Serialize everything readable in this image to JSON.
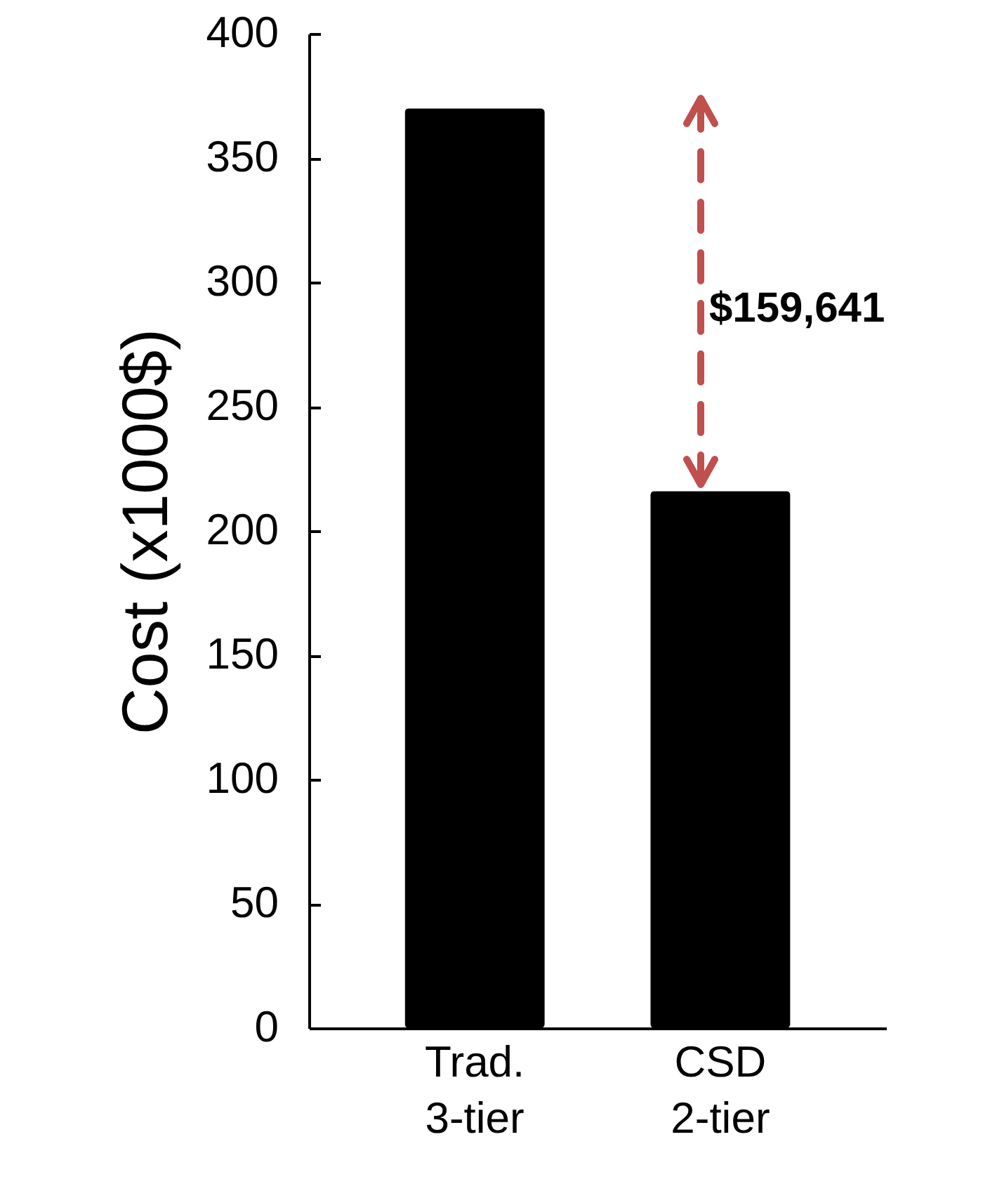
{
  "chart_data": {
    "type": "bar",
    "ylabel": "Cost (x1000$)",
    "categories": [
      "Trad. 3-tier",
      "CSD 2-tier"
    ],
    "values": [
      370,
      216
    ],
    "color": "#000000",
    "ylim": [
      0,
      400
    ],
    "yticks": [
      0,
      50,
      100,
      150,
      200,
      250,
      300,
      350,
      400
    ],
    "grid": false,
    "annotations": [
      "$159,641"
    ]
  }
}
